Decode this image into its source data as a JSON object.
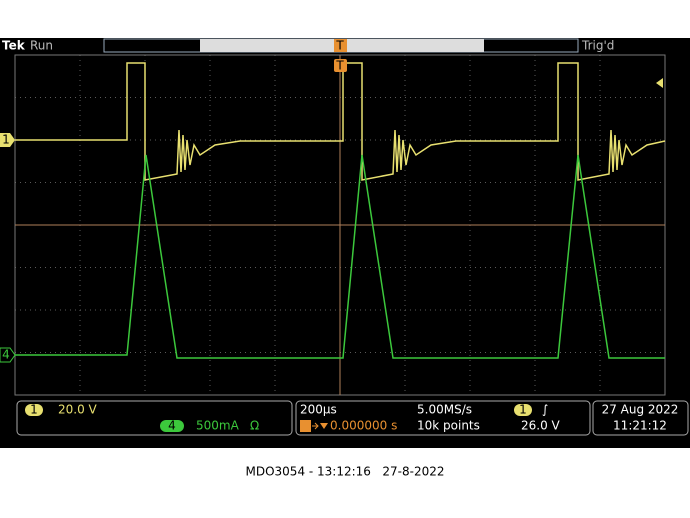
{
  "header": {
    "brand": "Tek",
    "status": "Run",
    "trigger_status": "Trig'd"
  },
  "markers": {
    "trigger_top": "T",
    "trigger_pos": "T",
    "ch1": "1",
    "ch4": "4"
  },
  "readout": {
    "ch1_label": "1",
    "ch1_scale": "20.0 V",
    "ch4_label": "4",
    "ch4_scale": "500mA",
    "ch4_term": "Ω",
    "timebase": "200µs",
    "sample_rate": "5.00MS/s",
    "trig_source": "1",
    "trig_slope": "∫",
    "trig_level": "26.0 V",
    "trig_position": "0.000000 s",
    "record_length": "10k points",
    "date": "27 Aug 2022",
    "time": "11:21:12"
  },
  "caption": "MDO3054 - 13:12:16   27-8-2022"
}
